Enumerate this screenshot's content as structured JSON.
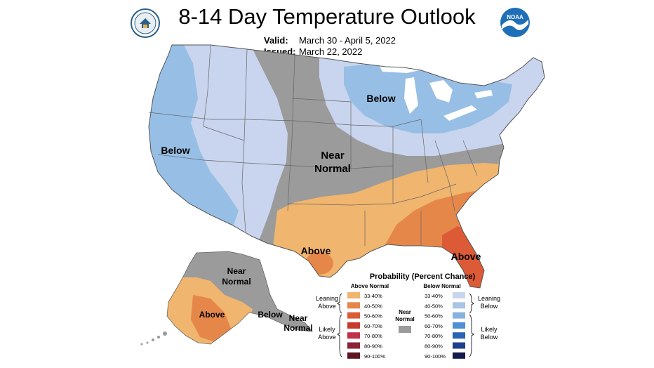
{
  "header": {
    "title": "8-14 Day Temperature Outlook",
    "valid_label": "Valid:",
    "valid_value": "March 30 - April 5, 2022",
    "issued_label": "Issued:",
    "issued_value": "March 22, 2022"
  },
  "logos": {
    "left": "commerce-seal-icon",
    "right": "noaa-logo-icon",
    "noaa_text": "NOAA"
  },
  "map": {
    "region_labels": {
      "west_below": "Below",
      "great_lakes_below": "Below",
      "central_near_1": "Near",
      "central_near_2": "Normal",
      "south_above": "Above",
      "florida_above": "Above",
      "ak_near_1": "Near",
      "ak_near_2": "Normal",
      "ak_above": "Above",
      "ak_below": "Below",
      "ak_aleut_near_1": "Near",
      "ak_aleut_near_2": "Normal"
    },
    "colors": {
      "below_33_40": "#c9d5ee",
      "below_40_50": "#97bfe6",
      "near_normal": "#9b9b9b",
      "above_33_40": "#f0b56e",
      "above_40_50": "#e6874a",
      "above_50_60": "#dc5a35"
    }
  },
  "legend": {
    "title": "Probability (Percent Chance)",
    "above_header": "Above Normal",
    "below_header": "Below Normal",
    "near_label_1": "Near",
    "near_label_2": "Normal",
    "leaning_above_1": "Leaning",
    "leaning_above_2": "Above",
    "likely_above_1": "Likely",
    "likely_above_2": "Above",
    "leaning_below_1": "Leaning",
    "leaning_below_2": "Below",
    "likely_below_1": "Likely",
    "likely_below_2": "Below",
    "ranges": [
      "33-40%",
      "40-50%",
      "50-60%",
      "60-70%",
      "70-80%",
      "80-90%",
      "90-100%"
    ],
    "above_colors": [
      "#f0b56e",
      "#e6874a",
      "#dc5a35",
      "#c83a2b",
      "#c0304a",
      "#8c2235",
      "#5c1520"
    ],
    "below_colors": [
      "#c9d5ee",
      "#a9c4e6",
      "#86b2e0",
      "#4f8fd4",
      "#2a62b4",
      "#1e3f8a",
      "#141c4a"
    ],
    "near_color": "#9b9b9b"
  }
}
